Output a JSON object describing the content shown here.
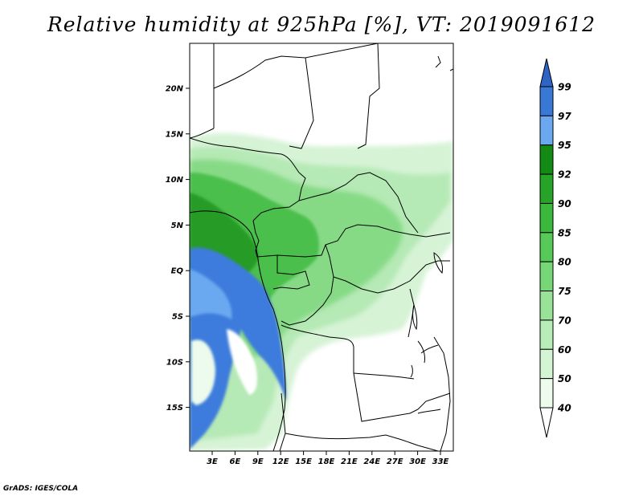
{
  "title": "Relative humidity at 925hPa [%], VT: 2019091612",
  "credit": "GrADS: IGES/COLA",
  "map": {
    "lat_ticks": [
      "20N",
      "15N",
      "10N",
      "5N",
      "EQ",
      "5S",
      "10S",
      "15S"
    ],
    "lon_ticks": [
      "3E",
      "6E",
      "9E",
      "12E",
      "15E",
      "18E",
      "21E",
      "24E",
      "27E",
      "30E",
      "33E"
    ]
  },
  "colorbar": {
    "levels": [
      "99",
      "97",
      "95",
      "92",
      "90",
      "85",
      "80",
      "75",
      "70",
      "60",
      "50",
      "40"
    ],
    "colors": [
      "#3a78d6",
      "#6aa8f0",
      "#138a13",
      "#27a327",
      "#3cb83c",
      "#57c957",
      "#77d777",
      "#99e399",
      "#b8edb8",
      "#d4f5d4",
      "#ecfbec"
    ],
    "top_arrow_color": "#2e64c4"
  },
  "colors": {
    "very_humid_blue": "#3e7cdc",
    "humid_green_dark": "#2f9f2f",
    "humid_green_mid": "#6ccf6c",
    "humid_green_light": "#c8efc8",
    "border_lines": "#000000"
  }
}
